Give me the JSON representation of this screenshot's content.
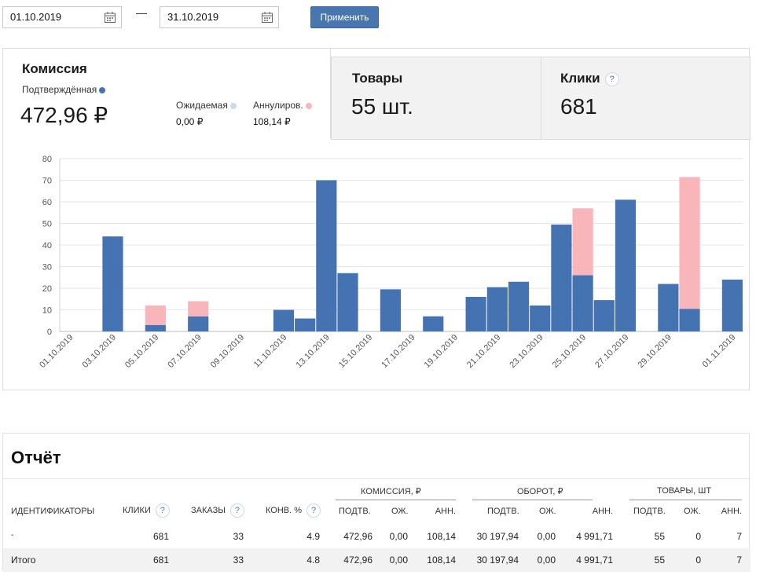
{
  "filters": {
    "date_from": "01.10.2019",
    "date_to": "31.10.2019",
    "apply_label": "Применить"
  },
  "tabs": {
    "commission": {
      "title": "Комиссия",
      "confirmed_label": "Подтверждённая",
      "confirmed_value": "472,96 ₽",
      "pending_label": "Ожидаемая",
      "pending_value": "0,00 ₽",
      "cancelled_label": "Аннулиров.",
      "cancelled_value": "108,14 ₽"
    },
    "goods": {
      "title": "Товары",
      "value": "55 шт."
    },
    "clicks": {
      "title": "Клики",
      "help": "?",
      "value": "681"
    }
  },
  "colors": {
    "confirmed": "#4573b1",
    "pending": "#c9dcee",
    "cancelled": "#f8b6bb",
    "button": "#4a76b0"
  },
  "chart_data": {
    "type": "bar",
    "stacked": true,
    "x": [
      "01.10.2019",
      "02.10.2019",
      "03.10.2019",
      "04.10.2019",
      "05.10.2019",
      "06.10.2019",
      "07.10.2019",
      "08.10.2019",
      "09.10.2019",
      "10.10.2019",
      "11.10.2019",
      "12.10.2019",
      "13.10.2019",
      "14.10.2019",
      "15.10.2019",
      "16.10.2019",
      "17.10.2019",
      "18.10.2019",
      "19.10.2019",
      "20.10.2019",
      "21.10.2019",
      "22.10.2019",
      "23.10.2019",
      "24.10.2019",
      "25.10.2019",
      "26.10.2019",
      "27.10.2019",
      "28.10.2019",
      "29.10.2019",
      "30.10.2019",
      "31.10.2019",
      "01.11.2019"
    ],
    "tick_labels": [
      "01.10.2019",
      "03.10.2019",
      "05.10.2019",
      "07.10.2019",
      "09.10.2019",
      "11.10.2019",
      "13.10.2019",
      "15.10.2019",
      "17.10.2019",
      "19.10.2019",
      "21.10.2019",
      "23.10.2019",
      "25.10.2019",
      "27.10.2019",
      "29.10.2019",
      "01.11.2019"
    ],
    "tick_indices": [
      0,
      2,
      4,
      6,
      8,
      10,
      12,
      14,
      16,
      18,
      20,
      22,
      24,
      26,
      28,
      31
    ],
    "series": [
      {
        "name": "Подтверждённая",
        "color": "#4573b1",
        "values": [
          0,
          0,
          44,
          0,
          3,
          0,
          7,
          0,
          0,
          0,
          10,
          6,
          70,
          27,
          0,
          19.5,
          0,
          7,
          0,
          16,
          20.5,
          23,
          12,
          49.5,
          26,
          14.5,
          61,
          0,
          22,
          10.5,
          0,
          24
        ]
      },
      {
        "name": "Аннулиров.",
        "color": "#f8b6bb",
        "values": [
          0,
          0,
          0,
          0,
          9,
          0,
          7,
          0,
          0,
          0,
          0,
          0,
          0,
          0,
          0,
          0,
          0,
          0,
          0,
          0,
          0,
          0,
          0,
          0,
          31,
          0,
          0,
          0,
          0,
          61,
          0,
          0
        ]
      }
    ],
    "ylim": [
      0,
      80
    ],
    "yticks": [
      0,
      10,
      20,
      30,
      40,
      50,
      60,
      70,
      80
    ],
    "grid": true
  },
  "report": {
    "title": "Отчёт",
    "groups": {
      "commission": "КОМИССИЯ, ₽",
      "turnover": "ОБОРОТ, ₽",
      "goods": "ТОВАРЫ, ШТ"
    },
    "columns": {
      "ids": "ИДЕНТИФИКАТОРЫ",
      "clicks": "КЛИКИ",
      "orders": "ЗАКАЗЫ",
      "conv": "КОНВ. %",
      "c_conf": "ПОДТВ.",
      "c_pend": "ОЖ.",
      "c_canc": "АНН.",
      "t_conf": "ПОДТВ.",
      "t_pend": "ОЖ.",
      "t_canc": "АНН.",
      "g_conf": "ПОДТВ.",
      "g_pend": "ОЖ.",
      "g_canc": "АНН."
    },
    "help": "?",
    "rows": [
      {
        "id": "-",
        "clicks": "681",
        "orders": "33",
        "conv": "4.9",
        "c_conf": "472,96",
        "c_pend": "0,00",
        "c_canc": "108,14",
        "t_conf": "30 197,94",
        "t_pend": "0,00",
        "t_canc": "4 991,71",
        "g_conf": "55",
        "g_pend": "0",
        "g_canc": "7"
      }
    ],
    "total": {
      "id": "Итого",
      "clicks": "681",
      "orders": "33",
      "conv": "4.8",
      "c_conf": "472,96",
      "c_pend": "0,00",
      "c_canc": "108,14",
      "t_conf": "30 197,94",
      "t_pend": "0,00",
      "t_canc": "4 991,71",
      "g_conf": "55",
      "g_pend": "0",
      "g_canc": "7"
    }
  }
}
